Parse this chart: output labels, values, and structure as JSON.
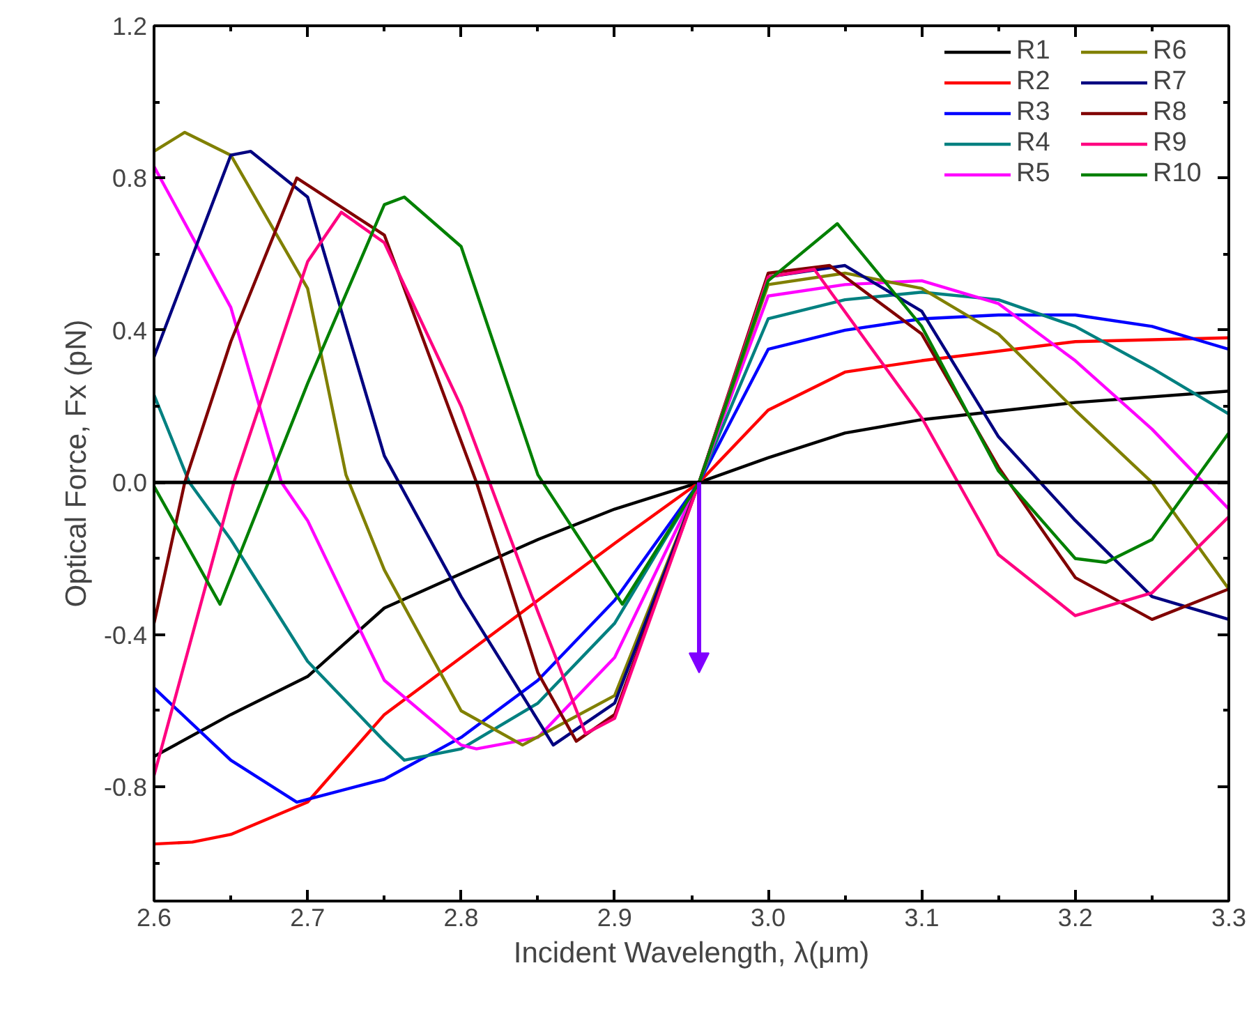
{
  "chart_data": {
    "type": "line",
    "xlabel": "Incident Wavelength, λ(μm)",
    "ylabel": "Optical Force, Fx (pN)",
    "xlim": [
      2.6,
      3.3
    ],
    "ylim": [
      -1.1,
      1.2
    ],
    "xticks": [
      2.6,
      2.7,
      2.8,
      2.9,
      {
        "value": 3.0,
        "label": "3.0"
      },
      3.1,
      3.2,
      3.3
    ],
    "yticks": [
      {
        "value": -0.8,
        "label": "-0.8"
      },
      {
        "value": -0.4,
        "label": "-0.4"
      },
      {
        "value": 0,
        "label": "0.0"
      },
      {
        "value": 0.4,
        "label": "0.4"
      },
      {
        "value": 0.8,
        "label": "0.8"
      },
      {
        "value": 1.2,
        "label": "1.2"
      }
    ],
    "grid": false,
    "legend": "top right",
    "line_style": "solid",
    "marker": "none",
    "ref_lines": [
      {
        "axis": "y",
        "value": 0,
        "color": "#000000"
      }
    ],
    "series": [
      {
        "name": "R1",
        "color": "#000000",
        "x": [
          2.6,
          2.65,
          2.7,
          2.75,
          2.8,
          2.85,
          2.9,
          2.955,
          3.0,
          3.05,
          3.1,
          3.2,
          3.3
        ],
        "values": [
          -0.72,
          -0.61,
          -0.51,
          -0.33,
          -0.24,
          -0.15,
          -0.07,
          0,
          0.065,
          0.13,
          0.165,
          0.21,
          0.24
        ]
      },
      {
        "name": "R2",
        "color": "#ff0000",
        "x": [
          2.6,
          2.625,
          2.65,
          2.7,
          2.75,
          2.8,
          2.85,
          2.9,
          2.955,
          3.0,
          3.05,
          3.1,
          3.2,
          3.3
        ],
        "values": [
          -0.95,
          -0.945,
          -0.925,
          -0.84,
          -0.61,
          -0.46,
          -0.31,
          -0.16,
          0,
          0.19,
          0.29,
          0.32,
          0.37,
          0.38
        ]
      },
      {
        "name": "R3",
        "color": "#0000ff",
        "x": [
          2.6,
          2.65,
          2.693,
          2.75,
          2.8,
          2.85,
          2.9,
          2.955,
          3.0,
          3.05,
          3.1,
          3.15,
          3.2,
          3.25,
          3.3
        ],
        "values": [
          -0.54,
          -0.73,
          -0.84,
          -0.78,
          -0.67,
          -0.52,
          -0.31,
          0,
          0.35,
          0.4,
          0.43,
          0.44,
          0.44,
          0.41,
          0.35
        ]
      },
      {
        "name": "R4",
        "color": "#008080",
        "x": [
          2.6,
          2.623,
          2.65,
          2.7,
          2.75,
          2.763,
          2.8,
          2.85,
          2.9,
          2.955,
          3.0,
          3.05,
          3.1,
          3.15,
          3.2,
          3.25,
          3.3
        ],
        "values": [
          0.23,
          0,
          -0.15,
          -0.47,
          -0.68,
          -0.73,
          -0.7,
          -0.58,
          -0.37,
          0,
          0.43,
          0.48,
          0.5,
          0.48,
          0.41,
          0.3,
          0.18
        ]
      },
      {
        "name": "R5",
        "color": "#ff00ff",
        "x": [
          2.6,
          2.65,
          2.683,
          2.7,
          2.75,
          2.8,
          2.81,
          2.85,
          2.9,
          2.955,
          3.0,
          3.05,
          3.1,
          3.15,
          3.2,
          3.25,
          3.3
        ],
        "values": [
          0.83,
          0.46,
          0,
          -0.1,
          -0.52,
          -0.69,
          -0.7,
          -0.67,
          -0.46,
          0,
          0.49,
          0.52,
          0.53,
          0.47,
          0.32,
          0.14,
          -0.07
        ]
      },
      {
        "name": "R6",
        "color": "#808000",
        "x": [
          2.6,
          2.62,
          2.65,
          2.7,
          2.725,
          2.75,
          2.8,
          2.84,
          2.9,
          2.955,
          3.0,
          3.05,
          3.1,
          3.15,
          3.2,
          3.25,
          3.3
        ],
        "values": [
          0.87,
          0.92,
          0.86,
          0.51,
          0.02,
          -0.23,
          -0.6,
          -0.69,
          -0.56,
          0,
          0.52,
          0.55,
          0.51,
          0.39,
          0.19,
          0,
          -0.28
        ]
      },
      {
        "name": "R7",
        "color": "#000080",
        "x": [
          2.6,
          2.65,
          2.663,
          2.7,
          2.75,
          2.8,
          2.86,
          2.9,
          2.955,
          3.0,
          3.05,
          3.1,
          3.15,
          3.2,
          3.25,
          3.3
        ],
        "values": [
          0.33,
          0.86,
          0.87,
          0.75,
          0.07,
          -0.3,
          -0.69,
          -0.58,
          0,
          0.54,
          0.57,
          0.45,
          0.12,
          -0.1,
          -0.3,
          -0.36
        ]
      },
      {
        "name": "R8",
        "color": "#800000",
        "x": [
          2.6,
          2.62,
          2.65,
          2.693,
          2.75,
          2.81,
          2.85,
          2.875,
          2.9,
          2.955,
          3.0,
          3.04,
          3.1,
          3.15,
          3.2,
          3.25,
          3.3
        ],
        "values": [
          -0.37,
          0,
          0.37,
          0.8,
          0.65,
          0,
          -0.5,
          -0.68,
          -0.61,
          0,
          0.55,
          0.57,
          0.39,
          0.04,
          -0.25,
          -0.36,
          -0.28
        ]
      },
      {
        "name": "R9",
        "color": "#ff0080",
        "x": [
          2.6,
          2.652,
          2.7,
          2.722,
          2.75,
          2.8,
          2.85,
          2.881,
          2.9,
          2.955,
          3.0,
          3.03,
          3.1,
          3.15,
          3.2,
          3.25,
          3.3
        ],
        "values": [
          -0.77,
          0,
          0.58,
          0.71,
          0.63,
          0.2,
          -0.34,
          -0.66,
          -0.62,
          0,
          0.54,
          0.56,
          0.17,
          -0.19,
          -0.35,
          -0.29,
          -0.09
        ]
      },
      {
        "name": "R10",
        "color": "#008000",
        "x": [
          2.6,
          2.643,
          2.7,
          2.75,
          2.763,
          2.8,
          2.85,
          2.905,
          2.955,
          3.0,
          3.045,
          3.1,
          3.15,
          3.2,
          3.22,
          3.25,
          3.3
        ],
        "values": [
          -0.01,
          -0.32,
          0.26,
          0.73,
          0.75,
          0.62,
          0.02,
          -0.32,
          0,
          0.53,
          0.68,
          0.41,
          0.03,
          -0.2,
          -0.21,
          -0.15,
          0.13
        ]
      }
    ]
  }
}
